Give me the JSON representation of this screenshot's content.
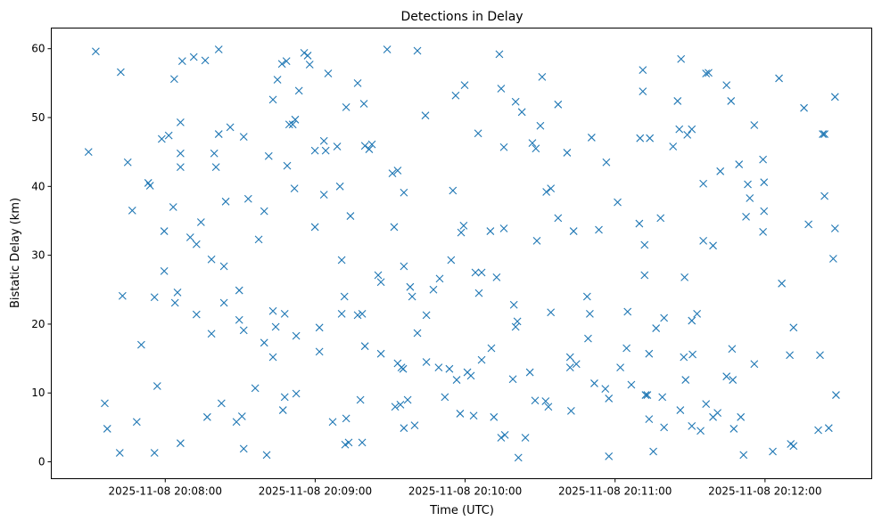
{
  "chart_data": {
    "type": "scatter",
    "title": "Detections in Delay",
    "xlabel": "Time (UTC)",
    "ylabel": "Bistatic Delay (km)",
    "xlim": [
      -45.6,
      282.7
    ],
    "ylim": [
      -2.45,
      63.0
    ],
    "xticks": [
      {
        "value": 0,
        "label": "2025-11-08 20:08:00"
      },
      {
        "value": 60,
        "label": "2025-11-08 20:09:00"
      },
      {
        "value": 120,
        "label": "2025-11-08 20:10:00"
      },
      {
        "value": 180,
        "label": "2025-11-08 20:11:00"
      },
      {
        "value": 240,
        "label": "2025-11-08 20:12:00"
      }
    ],
    "yticks": [
      {
        "value": 0,
        "label": "0"
      },
      {
        "value": 10,
        "label": "10"
      },
      {
        "value": 20,
        "label": "20"
      },
      {
        "value": 30,
        "label": "30"
      },
      {
        "value": 40,
        "label": "40"
      },
      {
        "value": 50,
        "label": "50"
      },
      {
        "value": 60,
        "label": "60"
      }
    ],
    "grid": false,
    "marker": "x",
    "color": "#1f77b4",
    "points": [
      [
        -30.7,
        45.0
      ],
      [
        -27.8,
        59.6
      ],
      [
        -24.2,
        8.5
      ],
      [
        -23.2,
        4.8
      ],
      [
        -17.8,
        56.6
      ],
      [
        -17.1,
        24.1
      ],
      [
        -18.2,
        1.3
      ],
      [
        -15.0,
        43.5
      ],
      [
        -13.2,
        36.5
      ],
      [
        -11.4,
        5.8
      ],
      [
        -9.6,
        17.0
      ],
      [
        -6.8,
        40.5
      ],
      [
        -6.1,
        40.1
      ],
      [
        -4.3,
        1.3
      ],
      [
        -4.3,
        23.9
      ],
      [
        -3.2,
        11.0
      ],
      [
        -1.4,
        46.9
      ],
      [
        -0.4,
        33.5
      ],
      [
        -0.4,
        27.7
      ],
      [
        1.4,
        47.4
      ],
      [
        3.2,
        37.0
      ],
      [
        3.6,
        55.6
      ],
      [
        3.9,
        23.1
      ],
      [
        4.9,
        24.6
      ],
      [
        6.1,
        49.3
      ],
      [
        6.1,
        44.8
      ],
      [
        6.1,
        42.8
      ],
      [
        6.1,
        2.7
      ],
      [
        6.8,
        58.2
      ],
      [
        10.0,
        32.6
      ],
      [
        11.4,
        58.8
      ],
      [
        12.5,
        31.6
      ],
      [
        12.5,
        21.4
      ],
      [
        14.3,
        34.8
      ],
      [
        16.0,
        58.3
      ],
      [
        16.8,
        6.5
      ],
      [
        18.5,
        29.4
      ],
      [
        18.5,
        18.6
      ],
      [
        19.6,
        44.8
      ],
      [
        20.3,
        42.8
      ],
      [
        21.4,
        47.6
      ],
      [
        21.4,
        59.9
      ],
      [
        22.5,
        8.5
      ],
      [
        23.5,
        28.4
      ],
      [
        23.5,
        23.1
      ],
      [
        24.2,
        37.8
      ],
      [
        26.0,
        48.6
      ],
      [
        28.5,
        5.8
      ],
      [
        29.6,
        24.9
      ],
      [
        29.6,
        20.6
      ],
      [
        30.7,
        6.6
      ],
      [
        31.4,
        19.1
      ],
      [
        31.4,
        1.9
      ],
      [
        31.4,
        47.2
      ],
      [
        33.2,
        38.2
      ],
      [
        36.0,
        10.7
      ],
      [
        37.4,
        32.3
      ],
      [
        39.6,
        36.4
      ],
      [
        39.6,
        17.3
      ],
      [
        40.6,
        1.0
      ],
      [
        41.4,
        44.4
      ],
      [
        43.1,
        52.6
      ],
      [
        43.1,
        21.9
      ],
      [
        43.1,
        15.2
      ],
      [
        44.2,
        19.6
      ],
      [
        44.9,
        55.5
      ],
      [
        46.7,
        57.8
      ],
      [
        47.1,
        7.5
      ],
      [
        47.8,
        9.4
      ],
      [
        47.8,
        21.5
      ],
      [
        48.5,
        58.2
      ],
      [
        48.8,
        43.0
      ],
      [
        49.6,
        49.0
      ],
      [
        51.0,
        49.0
      ],
      [
        52.0,
        49.7
      ],
      [
        51.7,
        39.7
      ],
      [
        52.4,
        18.3
      ],
      [
        52.4,
        9.9
      ],
      [
        53.5,
        53.9
      ],
      [
        55.6,
        59.4
      ],
      [
        57.0,
        59.0
      ],
      [
        57.8,
        57.7
      ],
      [
        59.9,
        34.1
      ],
      [
        59.9,
        45.2
      ],
      [
        61.7,
        16.0
      ],
      [
        61.7,
        19.5
      ],
      [
        63.5,
        46.6
      ],
      [
        63.5,
        38.8
      ],
      [
        64.2,
        45.2
      ],
      [
        65.2,
        56.4
      ],
      [
        67.0,
        5.8
      ],
      [
        68.8,
        45.8
      ],
      [
        69.9,
        40.0
      ],
      [
        70.6,
        29.3
      ],
      [
        70.6,
        21.5
      ],
      [
        71.7,
        24.0
      ],
      [
        72.0,
        2.5
      ],
      [
        72.4,
        6.3
      ],
      [
        72.4,
        51.5
      ],
      [
        73.4,
        2.8
      ],
      [
        74.1,
        35.7
      ],
      [
        77.0,
        55.0
      ],
      [
        77.0,
        21.3
      ],
      [
        78.1,
        9.0
      ],
      [
        78.8,
        21.5
      ],
      [
        78.8,
        2.8
      ],
      [
        79.5,
        52.0
      ],
      [
        79.9,
        16.8
      ],
      [
        79.9,
        45.9
      ],
      [
        81.6,
        45.4
      ],
      [
        82.7,
        46.1
      ],
      [
        85.2,
        27.1
      ],
      [
        86.3,
        26.1
      ],
      [
        86.3,
        15.7
      ],
      [
        88.8,
        59.9
      ],
      [
        90.9,
        41.9
      ],
      [
        91.6,
        34.1
      ],
      [
        92.0,
        8.0
      ],
      [
        93.0,
        42.3
      ],
      [
        93.0,
        14.3
      ],
      [
        94.1,
        8.3
      ],
      [
        94.5,
        13.7
      ],
      [
        95.2,
        13.5
      ],
      [
        95.5,
        39.1
      ],
      [
        95.5,
        4.9
      ],
      [
        95.5,
        28.4
      ],
      [
        97.0,
        9.0
      ],
      [
        98.0,
        25.4
      ],
      [
        98.8,
        24.0
      ],
      [
        99.8,
        5.3
      ],
      [
        100.9,
        59.7
      ],
      [
        100.9,
        18.7
      ],
      [
        104.1,
        50.3
      ],
      [
        104.5,
        14.5
      ],
      [
        104.5,
        21.3
      ],
      [
        107.3,
        25.0
      ],
      [
        109.4,
        13.7
      ],
      [
        109.8,
        26.6
      ],
      [
        111.9,
        9.4
      ],
      [
        113.7,
        13.5
      ],
      [
        114.4,
        29.3
      ],
      [
        115.1,
        39.4
      ],
      [
        116.2,
        53.2
      ],
      [
        116.6,
        11.9
      ],
      [
        118.0,
        7.0
      ],
      [
        118.4,
        33.3
      ],
      [
        119.4,
        34.3
      ],
      [
        119.8,
        54.7
      ],
      [
        120.9,
        13.0
      ],
      [
        122.3,
        12.5
      ],
      [
        123.4,
        6.7
      ],
      [
        124.1,
        27.5
      ],
      [
        125.2,
        47.7
      ],
      [
        125.5,
        24.5
      ],
      [
        126.6,
        27.5
      ],
      [
        126.6,
        14.8
      ],
      [
        130.1,
        33.5
      ],
      [
        130.5,
        16.5
      ],
      [
        131.5,
        6.5
      ],
      [
        132.6,
        26.8
      ],
      [
        133.7,
        59.2
      ],
      [
        134.4,
        54.2
      ],
      [
        134.4,
        3.5
      ],
      [
        135.5,
        33.9
      ],
      [
        135.5,
        45.7
      ],
      [
        135.9,
        3.9
      ],
      [
        139.1,
        12.0
      ],
      [
        139.5,
        22.8
      ],
      [
        140.2,
        52.3
      ],
      [
        140.2,
        19.6
      ],
      [
        140.9,
        20.4
      ],
      [
        141.3,
        0.6
      ],
      [
        142.7,
        50.8
      ],
      [
        144.1,
        3.5
      ],
      [
        145.9,
        13.0
      ],
      [
        146.9,
        46.3
      ],
      [
        148.0,
        8.9
      ],
      [
        148.3,
        45.5
      ],
      [
        148.7,
        32.1
      ],
      [
        150.1,
        48.8
      ],
      [
        150.8,
        55.9
      ],
      [
        152.2,
        8.8
      ],
      [
        152.5,
        39.2
      ],
      [
        153.3,
        8.0
      ],
      [
        154.3,
        39.7
      ],
      [
        154.3,
        21.7
      ],
      [
        157.2,
        35.4
      ],
      [
        157.2,
        51.9
      ],
      [
        160.8,
        44.9
      ],
      [
        162.0,
        15.2
      ],
      [
        162.0,
        13.7
      ],
      [
        162.4,
        7.4
      ],
      [
        163.4,
        33.5
      ],
      [
        164.5,
        14.2
      ],
      [
        168.8,
        24.0
      ],
      [
        169.9,
        21.5
      ],
      [
        169.2,
        17.9
      ],
      [
        170.6,
        47.1
      ],
      [
        171.7,
        11.4
      ],
      [
        173.5,
        33.7
      ],
      [
        176.5,
        43.5
      ],
      [
        176.1,
        10.6
      ],
      [
        177.5,
        9.2
      ],
      [
        177.5,
        0.8
      ],
      [
        181.0,
        37.7
      ],
      [
        182.1,
        13.7
      ],
      [
        184.6,
        16.5
      ],
      [
        185.0,
        21.8
      ],
      [
        186.5,
        11.2
      ],
      [
        189.7,
        34.6
      ],
      [
        190.0,
        47.0
      ],
      [
        191.1,
        56.9
      ],
      [
        191.1,
        53.8
      ],
      [
        191.8,
        31.5
      ],
      [
        191.8,
        27.1
      ],
      [
        192.2,
        9.7
      ],
      [
        192.9,
        9.7
      ],
      [
        193.6,
        15.7
      ],
      [
        193.6,
        6.2
      ],
      [
        193.9,
        47.0
      ],
      [
        195.3,
        1.5
      ],
      [
        196.4,
        19.4
      ],
      [
        198.2,
        35.4
      ],
      [
        198.9,
        9.4
      ],
      [
        199.6,
        20.9
      ],
      [
        199.6,
        5.0
      ],
      [
        203.2,
        45.8
      ],
      [
        205.0,
        52.4
      ],
      [
        205.7,
        48.3
      ],
      [
        206.1,
        7.5
      ],
      [
        206.4,
        58.5
      ],
      [
        207.5,
        15.2
      ],
      [
        207.8,
        26.8
      ],
      [
        208.2,
        11.9
      ],
      [
        208.9,
        47.5
      ],
      [
        210.7,
        48.3
      ],
      [
        210.7,
        5.2
      ],
      [
        210.7,
        20.5
      ],
      [
        211.0,
        15.6
      ],
      [
        212.8,
        21.5
      ],
      [
        214.2,
        4.5
      ],
      [
        215.3,
        40.4
      ],
      [
        215.3,
        32.1
      ],
      [
        216.4,
        56.4
      ],
      [
        217.4,
        56.5
      ],
      [
        216.4,
        8.4
      ],
      [
        219.2,
        31.4
      ],
      [
        219.2,
        6.5
      ],
      [
        221.0,
        7.1
      ],
      [
        222.1,
        42.2
      ],
      [
        224.6,
        54.7
      ],
      [
        224.6,
        12.4
      ],
      [
        226.4,
        52.4
      ],
      [
        226.8,
        16.4
      ],
      [
        227.1,
        11.9
      ],
      [
        227.5,
        4.8
      ],
      [
        229.6,
        43.2
      ],
      [
        230.3,
        6.5
      ],
      [
        231.4,
        1.0
      ],
      [
        232.4,
        35.6
      ],
      [
        233.1,
        40.3
      ],
      [
        233.9,
        38.3
      ],
      [
        235.7,
        48.9
      ],
      [
        235.7,
        14.2
      ],
      [
        239.2,
        43.9
      ],
      [
        239.6,
        36.4
      ],
      [
        239.2,
        33.4
      ],
      [
        239.6,
        40.6
      ],
      [
        243.1,
        1.5
      ],
      [
        245.6,
        55.7
      ],
      [
        246.7,
        25.9
      ],
      [
        249.9,
        15.5
      ],
      [
        250.3,
        2.6
      ],
      [
        251.4,
        19.5
      ],
      [
        251.4,
        2.3
      ],
      [
        255.6,
        51.4
      ],
      [
        257.4,
        34.5
      ],
      [
        261.3,
        4.6
      ],
      [
        262.0,
        15.5
      ],
      [
        263.1,
        47.6
      ],
      [
        263.8,
        47.6
      ],
      [
        263.8,
        38.6
      ],
      [
        265.5,
        4.9
      ],
      [
        267.3,
        29.5
      ],
      [
        268.0,
        53.0
      ],
      [
        268.0,
        33.9
      ],
      [
        268.4,
        9.7
      ]
    ]
  }
}
